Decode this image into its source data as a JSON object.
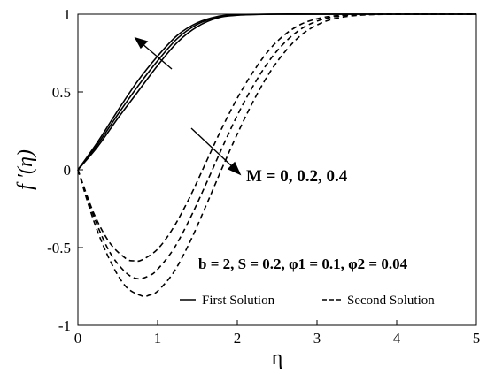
{
  "chart_data": {
    "type": "line",
    "xlabel": "η",
    "ylabel": "f ′(η)",
    "xlim": [
      0,
      5
    ],
    "ylim": [
      -1,
      1
    ],
    "xticks": [
      0,
      1,
      2,
      3,
      4,
      5
    ],
    "yticks": [
      -1,
      -0.5,
      0,
      0.5,
      1
    ],
    "xtick_labels": [
      "0",
      "1",
      "2",
      "3",
      "4",
      "5"
    ],
    "ytick_labels": [
      "-1",
      "-0.5",
      "0",
      "0.5",
      "1"
    ],
    "grid": false,
    "annotations": {
      "parameter_sweep": "M = 0, 0.2, 0.4",
      "fixed_parameters": "b = 2, S = 0.2, φ1 = 0.1, φ2 = 0.04"
    },
    "legend": {
      "placement": "bottom-right",
      "entries": [
        {
          "label": "First Solution",
          "style": "solid"
        },
        {
          "label": "Second Solution",
          "style": "dashed"
        }
      ]
    },
    "series": [
      {
        "solution": "first",
        "M": 0,
        "style": "solid",
        "x": [
          0,
          0.25,
          0.5,
          0.75,
          1.0,
          1.25,
          1.5,
          1.75,
          2.0,
          2.5,
          3.0,
          4.0,
          5.0
        ],
        "y": [
          0,
          0.15,
          0.33,
          0.5,
          0.67,
          0.82,
          0.92,
          0.975,
          0.993,
          1.0,
          1.0,
          1.0,
          1.0
        ]
      },
      {
        "solution": "first",
        "M": 0.2,
        "style": "solid",
        "x": [
          0,
          0.25,
          0.5,
          0.75,
          1.0,
          1.25,
          1.5,
          1.75,
          2.0,
          2.5,
          3.0,
          4.0,
          5.0
        ],
        "y": [
          0,
          0.165,
          0.355,
          0.535,
          0.7,
          0.845,
          0.935,
          0.98,
          0.995,
          1.0,
          1.0,
          1.0,
          1.0
        ]
      },
      {
        "solution": "first",
        "M": 0.4,
        "style": "solid",
        "x": [
          0,
          0.25,
          0.5,
          0.75,
          1.0,
          1.25,
          1.5,
          1.75,
          2.0,
          2.5,
          3.0,
          4.0,
          5.0
        ],
        "y": [
          0,
          0.18,
          0.38,
          0.57,
          0.73,
          0.865,
          0.945,
          0.985,
          0.997,
          1.0,
          1.0,
          1.0,
          1.0
        ]
      },
      {
        "solution": "second",
        "M": 0,
        "style": "dashed",
        "x": [
          0,
          0.2,
          0.4,
          0.6,
          0.7,
          0.8,
          1.0,
          1.2,
          1.4,
          1.6,
          1.8,
          2.0,
          2.2,
          2.4,
          2.6,
          2.8,
          3.0,
          3.2,
          3.5,
          4.0,
          5.0
        ],
        "y": [
          0,
          -0.28,
          -0.47,
          -0.57,
          -0.585,
          -0.58,
          -0.51,
          -0.37,
          -0.18,
          0.04,
          0.26,
          0.46,
          0.63,
          0.77,
          0.87,
          0.935,
          0.97,
          0.988,
          0.998,
          1.0,
          1.0
        ]
      },
      {
        "solution": "second",
        "M": 0.2,
        "style": "dashed",
        "x": [
          0,
          0.2,
          0.4,
          0.6,
          0.75,
          0.9,
          1.0,
          1.2,
          1.4,
          1.6,
          1.8,
          2.0,
          2.2,
          2.4,
          2.6,
          2.8,
          3.0,
          3.2,
          3.5,
          4.0,
          5.0
        ],
        "y": [
          0,
          -0.3,
          -0.53,
          -0.66,
          -0.7,
          -0.68,
          -0.64,
          -0.51,
          -0.32,
          -0.1,
          0.13,
          0.35,
          0.54,
          0.7,
          0.82,
          0.905,
          0.955,
          0.982,
          0.996,
          1.0,
          1.0
        ]
      },
      {
        "solution": "second",
        "M": 0.4,
        "style": "dashed",
        "x": [
          0,
          0.2,
          0.4,
          0.6,
          0.8,
          0.9,
          1.0,
          1.2,
          1.4,
          1.6,
          1.8,
          2.0,
          2.2,
          2.4,
          2.6,
          2.8,
          3.0,
          3.2,
          3.5,
          4.0,
          5.0
        ],
        "y": [
          0,
          -0.33,
          -0.58,
          -0.75,
          -0.81,
          -0.805,
          -0.78,
          -0.66,
          -0.47,
          -0.24,
          0.0,
          0.23,
          0.44,
          0.62,
          0.76,
          0.865,
          0.93,
          0.968,
          0.992,
          1.0,
          1.0
        ]
      }
    ]
  }
}
